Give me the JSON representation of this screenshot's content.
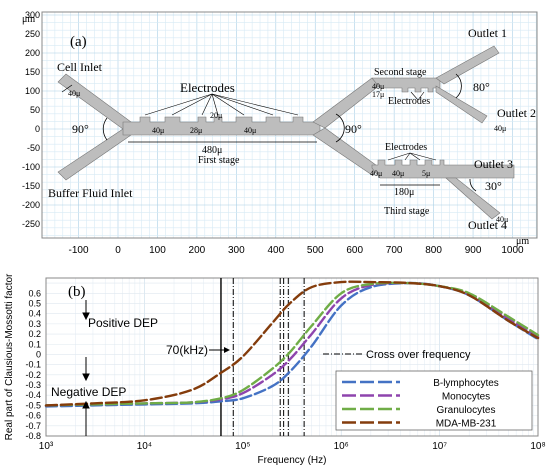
{
  "panel_a": {
    "label": "(a)",
    "axis_unit": "μm",
    "x_ticks": [
      "-100",
      "0",
      "100",
      "200",
      "300",
      "400",
      "500",
      "600",
      "700",
      "800",
      "900",
      "1000"
    ],
    "y_ticks": [
      "300",
      "250",
      "200",
      "150",
      "100",
      "50",
      "0",
      "-50",
      "-100",
      "-150",
      "-200",
      "-250"
    ],
    "labels": {
      "cell_inlet": "Cell Inlet",
      "buffer_inlet": "Buffer Fluid Inlet",
      "electrodes": "Electrodes",
      "first_stage": "First stage",
      "second_stage": "Second stage",
      "third_stage": "Third stage",
      "outlet1": "Outlet 1",
      "outlet2": "Outlet 2",
      "outlet3": "Outlet 3",
      "outlet4": "Outlet 4",
      "angle_90_left": "90°",
      "angle_90_mid": "90°",
      "angle_80": "80°",
      "angle_30": "30°",
      "dim_480": "480μ",
      "dim_180": "180μ",
      "dim_40a": "40μ",
      "dim_40b": "40μ",
      "dim_40c": "40μ",
      "dim_40d": "40μ",
      "dim_40e": "40μ",
      "dim_40f": "40μ",
      "dim_40g": "40μ",
      "dim_40h": "40μ",
      "dim_28": "28μ",
      "dim_20": "20μ",
      "dim_17": "17μ",
      "dim_5": "5μ",
      "electrodes2": "Electrodes",
      "electrodes3": "Electrodes"
    }
  },
  "panel_b": {
    "label": "(b)",
    "positive_dep": "Positive DEP",
    "negative_dep": "Negative DEP",
    "freq_annot": "70(kHz)",
    "crossover_legend": "Cross over frequency",
    "chart_data": {
      "type": "line",
      "xlabel": "Frequency (Hz)",
      "ylabel": "Real part of Clausious-Mossotti factor",
      "x_scale": "log",
      "xlim": [
        1000,
        100000000
      ],
      "ylim": [
        -0.8,
        0.75
      ],
      "x_tick_labels": [
        "10³",
        "10⁴",
        "10⁵",
        "10⁶",
        "10⁷",
        "10⁸"
      ],
      "y_tick_labels": [
        "0.6",
        "0.5",
        "0.4",
        "0.3",
        "0.2",
        "0.1",
        "0",
        "-0.1",
        "-0.2",
        "-0.3",
        "-0.4",
        "-0.5",
        "-0.6",
        "-0.7",
        "-0.8"
      ],
      "x": [
        1000,
        3000,
        10000,
        30000,
        60000,
        100000,
        200000,
        300000,
        500000,
        1000000,
        2000000,
        5000000,
        10000000,
        20000000,
        50000000,
        100000000
      ],
      "series": [
        {
          "name": "B-lymphocytes",
          "color": "#4472c4",
          "values": [
            -0.51,
            -0.5,
            -0.49,
            -0.48,
            -0.46,
            -0.43,
            -0.31,
            -0.17,
            0.08,
            0.48,
            0.66,
            0.7,
            0.67,
            0.58,
            0.33,
            0.15
          ]
        },
        {
          "name": "Monocytes",
          "color": "#8e44ad",
          "values": [
            -0.5,
            -0.49,
            -0.48,
            -0.47,
            -0.44,
            -0.38,
            -0.2,
            -0.05,
            0.2,
            0.55,
            0.68,
            0.7,
            0.67,
            0.59,
            0.35,
            0.17
          ]
        },
        {
          "name": "Granulocytes",
          "color": "#70ad47",
          "values": [
            -0.5,
            -0.49,
            -0.48,
            -0.47,
            -0.43,
            -0.35,
            -0.14,
            0.02,
            0.28,
            0.6,
            0.69,
            0.7,
            0.67,
            0.6,
            0.37,
            0.19
          ]
        },
        {
          "name": "MDA-MB-231",
          "color": "#843c0c",
          "values": [
            -0.5,
            -0.48,
            -0.45,
            -0.35,
            -0.18,
            -0.02,
            0.31,
            0.5,
            0.66,
            0.71,
            0.71,
            0.7,
            0.67,
            0.58,
            0.33,
            0.16
          ]
        }
      ],
      "solid_vline_x": 60000,
      "crossover_x": [
        80000,
        240000,
        260000,
        290000,
        420000
      ]
    }
  }
}
